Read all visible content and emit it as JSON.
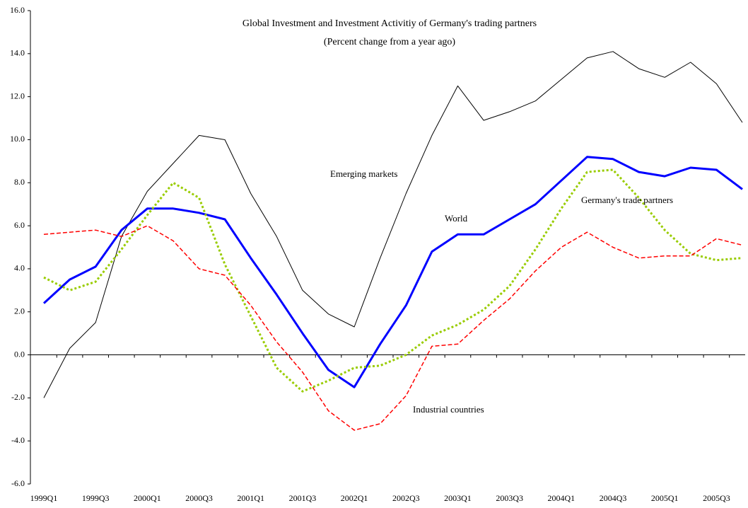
{
  "chart_data": {
    "type": "line",
    "title": "Global Investment and Investment Activitiy of Germany's trading partners",
    "subtitle": "(Percent change from a year ago)",
    "categories": [
      "1999Q1",
      null,
      "1999Q3",
      null,
      "2000Q1",
      null,
      "2000Q3",
      null,
      "2001Q1",
      null,
      "2001Q3",
      null,
      "2002Q1",
      null,
      "2002Q3",
      null,
      "2003Q1",
      null,
      "2003Q3",
      null,
      "2004Q1",
      null,
      "2004Q3",
      null,
      "2005Q1",
      null,
      "2005Q3",
      null
    ],
    "series": [
      {
        "name": "Emerging markets",
        "color": "#000000",
        "dash": "solid",
        "width": 1,
        "values": [
          -2.0,
          0.3,
          1.5,
          5.5,
          7.6,
          8.9,
          10.2,
          10.0,
          7.5,
          5.5,
          3.0,
          1.9,
          1.3,
          4.5,
          7.5,
          10.2,
          12.5,
          10.9,
          11.3,
          11.8,
          12.8,
          13.8,
          14.1,
          13.3,
          12.9,
          13.6,
          12.6,
          10.8
        ]
      },
      {
        "name": "World",
        "color": "#0000ff",
        "dash": "solid",
        "width": 3,
        "values": [
          2.4,
          3.5,
          4.1,
          5.8,
          6.8,
          6.8,
          6.6,
          6.3,
          4.5,
          2.8,
          1.0,
          -0.7,
          -1.5,
          0.5,
          2.3,
          4.8,
          5.6,
          5.6,
          6.3,
          7.0,
          8.1,
          9.2,
          9.1,
          8.5,
          8.3,
          8.7,
          8.6,
          7.7
        ]
      },
      {
        "name": "Germany's trade partners",
        "color": "#99cc00",
        "dash": "dotted",
        "width": 3,
        "values": [
          3.6,
          3.0,
          3.4,
          4.9,
          6.5,
          8.0,
          7.3,
          4.2,
          1.8,
          -0.6,
          -1.7,
          -1.2,
          -0.6,
          -0.5,
          0.0,
          0.9,
          1.4,
          2.1,
          3.2,
          4.9,
          6.8,
          8.5,
          8.6,
          7.3,
          5.8,
          4.7,
          4.4,
          4.5
        ]
      },
      {
        "name": "Industrial countries",
        "color": "#ff0000",
        "dash": "dashed",
        "width": 1.5,
        "values": [
          5.6,
          5.7,
          5.8,
          5.5,
          6.0,
          5.3,
          4.0,
          3.7,
          2.3,
          0.6,
          -0.8,
          -2.6,
          -3.5,
          -3.2,
          -1.9,
          0.4,
          0.5,
          1.6,
          2.6,
          3.9,
          5.0,
          5.7,
          5.0,
          4.5,
          4.6,
          4.6,
          5.4,
          5.1
        ]
      }
    ],
    "ylim": [
      -6,
      16
    ],
    "yticks": [
      {
        "value": -6,
        "label": "-6.0"
      },
      {
        "value": -4,
        "label": "-4.0"
      },
      {
        "value": -2,
        "label": "-2.0"
      },
      {
        "value": 0,
        "label": "0.0"
      },
      {
        "value": 2,
        "label": "2.0"
      },
      {
        "value": 4,
        "label": "4.0"
      },
      {
        "value": 6,
        "label": "6.0"
      },
      {
        "value": 8,
        "label": "8.0"
      },
      {
        "value": 10,
        "label": "10.0"
      },
      {
        "value": 12,
        "label": "12.0"
      },
      {
        "value": 14,
        "label": "14.0"
      },
      {
        "value": 16,
        "label": "16.0"
      }
    ],
    "grid": false
  }
}
